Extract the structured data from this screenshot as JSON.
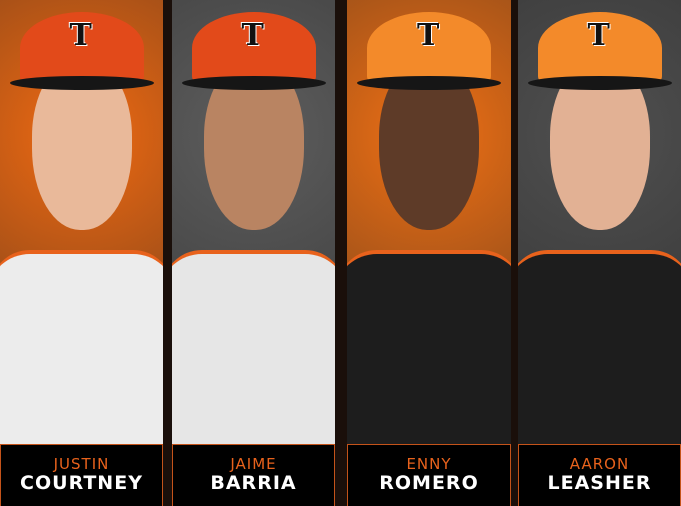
{
  "players": [
    {
      "first": "JUSTIN",
      "last": "COURTNEY",
      "background": "#f06a12",
      "jersey": "#ececec",
      "cap": "#e24a1a"
    },
    {
      "first": "JAIME",
      "last": "BARRIA",
      "background": "#5e5e5e",
      "jersey": "#e6e6e6",
      "cap": "#e24a1a"
    },
    {
      "first": "ENNY",
      "last": "ROMERO",
      "background": "#f07014",
      "jersey": "#1d1d1d",
      "cap": "#f38a2a"
    },
    {
      "first": "AARON",
      "last": "LEASHER",
      "background": "#505050",
      "jersey": "#1d1d1d",
      "cap": "#f38a2a"
    }
  ],
  "cap_logo": "T",
  "colors": {
    "accent": "#e8621c",
    "name_bg": "#000000",
    "name_text": "#ffffff"
  }
}
